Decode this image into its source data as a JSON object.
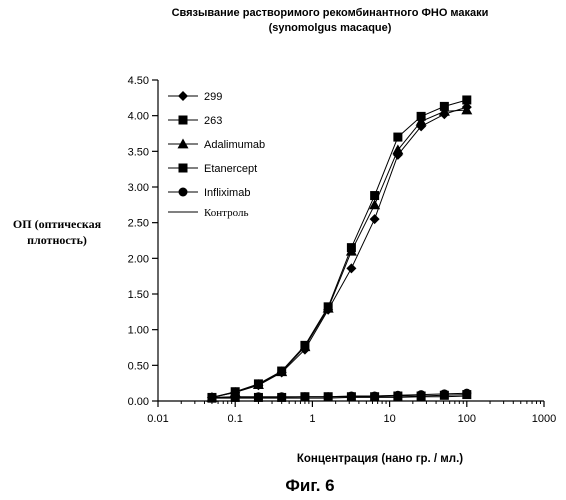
{
  "chart_data": {
    "type": "line",
    "title": "Связывание растворимого рекомбинантного ФНО макаки",
    "subtitle": "(synomolgus macaque)",
    "xlabel": "Концентрация (нано гр. / мл.)",
    "ylabel": "ОП (оптическая плотность)",
    "ylabel_lines": [
      "ОП (оптическая",
      "плотность)"
    ],
    "caption": "Фиг. 6",
    "x_scale": "log",
    "xlim": [
      0.01,
      1000
    ],
    "ylim": [
      0,
      4.5
    ],
    "x_tick_labels": [
      "0.01",
      "0.1",
      "1",
      "10",
      "100",
      "1000"
    ],
    "x_tick_values": [
      0.01,
      0.1,
      1,
      10,
      100,
      1000
    ],
    "y_tick_labels": [
      "0.00",
      "0.50",
      "1.00",
      "1.50",
      "2.00",
      "2.50",
      "3.00",
      "3.50",
      "4.00",
      "4.50"
    ],
    "y_tick_values": [
      0,
      0.5,
      1,
      1.5,
      2,
      2.5,
      3,
      3.5,
      4,
      4.5
    ],
    "grid": false,
    "legend_position": "top-left",
    "x": [
      0.05,
      0.1,
      0.2,
      0.4,
      0.8,
      1.6,
      3.2,
      6.4,
      12.8,
      25.6,
      51.2,
      100
    ],
    "series": [
      {
        "name": "299",
        "marker": "diamond",
        "values": [
          0.05,
          0.12,
          0.22,
          0.4,
          0.72,
          1.28,
          1.86,
          2.55,
          3.45,
          3.85,
          4.02,
          4.12
        ]
      },
      {
        "name": "263",
        "marker": "square",
        "values": [
          0.05,
          0.13,
          0.24,
          0.42,
          0.78,
          1.32,
          2.15,
          2.88,
          3.7,
          3.99,
          4.13,
          4.22
        ]
      },
      {
        "name": "Adalimumab",
        "marker": "triangle",
        "values": [
          0.05,
          0.12,
          0.23,
          0.41,
          0.76,
          1.3,
          2.1,
          2.75,
          3.52,
          3.92,
          4.06,
          4.08
        ]
      },
      {
        "name": "Etanercept",
        "marker": "square",
        "values": [
          0.04,
          0.05,
          0.05,
          0.05,
          0.06,
          0.06,
          0.06,
          0.06,
          0.07,
          0.07,
          0.08,
          0.09
        ]
      },
      {
        "name": "Infliximab",
        "marker": "circle",
        "values": [
          0.05,
          0.06,
          0.06,
          0.06,
          0.06,
          0.06,
          0.07,
          0.07,
          0.08,
          0.09,
          0.1,
          0.11
        ]
      },
      {
        "name": "Контроль",
        "marker": "none",
        "values": [
          0.04,
          0.04,
          0.04,
          0.04,
          0.04,
          0.04,
          0.05,
          0.05,
          0.05,
          0.06,
          0.06,
          0.07
        ]
      }
    ]
  }
}
